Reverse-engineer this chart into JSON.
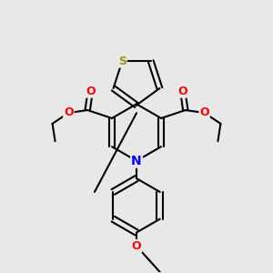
{
  "background_color": "#e8e8e8",
  "bond_color": "#000000",
  "bond_width": 1.5,
  "atom_colors": {
    "S": "#999900",
    "O": "#ff0000",
    "N": "#0000ff",
    "C": "#000000"
  },
  "font_size": 9,
  "fig_size": [
    3.0,
    3.0
  ],
  "dpi": 100
}
